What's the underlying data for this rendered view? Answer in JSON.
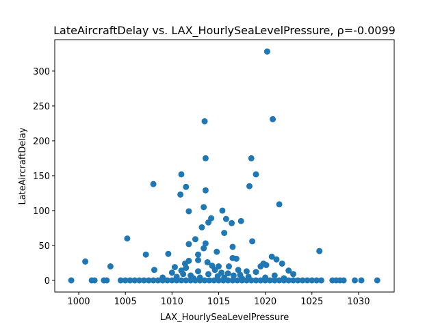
{
  "chart_data": {
    "type": "scatter",
    "title": "LateAircraftDelay vs. LAX_HourlySeaLevelPressure, ρ=-0.0099",
    "x_label": "LAX_HourlySeaLevelPressure",
    "y_label": "LateAircraftDelay",
    "color": "#1f77b4",
    "x": [
      1020.2,
      1013.5,
      1020.8,
      1013.6,
      1018.5,
      1011.0,
      1019.0,
      1008.0,
      1011.5,
      1018.3,
      1013.6,
      1010.9,
      1021.5,
      1013.4,
      1015.4,
      1011.8,
      1015.8,
      1014.2,
      1017.4,
      1013.9,
      1016.4,
      1013.2,
      1015.6,
      1005.2,
      1012.5,
      1018.6,
      1013.6,
      1011.8,
      1016.5,
      1013.4,
      1025.8,
      1014.8,
      1009.6,
      1007.2,
      1012.8,
      1020.7,
      1016.5,
      1021.2,
      1012.8,
      1016.9,
      1011.8,
      1000.7,
      1013.8,
      1011.4,
      1019.8,
      1021.8,
      1020.1,
      1014.3,
      1003.4,
      1015.0,
      1010.3,
      1016.1,
      1019.5,
      1011.5,
      1008.1,
      1014.6,
      1017.1,
      1022.5,
      1011.0,
      1012.8,
      1018.0,
      1010.0,
      1015.3,
      1016.0,
      1019.0,
      1023.0,
      1011.2,
      1013.9,
      1017.3,
      1012.0,
      1014.9,
      1016.6,
      1021.0,
      1010.5,
      1018.2,
      1009.0,
      1013.0,
      1015.6,
      1020.0,
      1022.0,
      1012.3,
      1017.5,
      999.2,
      1001.4,
      1001.7,
      1002.7,
      1003.0,
      1004.5,
      1005.0,
      1005.5,
      1006.0,
      1006.5,
      1007.0,
      1007.5,
      1008.0,
      1008.5,
      1009.0,
      1009.5,
      1010.0,
      1010.5,
      1011.0,
      1011.5,
      1012.0,
      1012.5,
      1013.0,
      1013.5,
      1014.0,
      1014.5,
      1015.0,
      1015.5,
      1016.0,
      1016.5,
      1017.0,
      1017.5,
      1018.0,
      1018.5,
      1019.0,
      1019.5,
      1020.0,
      1020.5,
      1021.0,
      1021.5,
      1022.0,
      1022.5,
      1023.0,
      1023.5,
      1024.0,
      1024.5,
      1025.0,
      1025.5,
      1026.0,
      1027.2,
      1027.6,
      1028.0,
      1028.4,
      1029.6,
      1030.3,
      1032.0
    ],
    "values": [
      328,
      228,
      231,
      175,
      175,
      152,
      152,
      138,
      134,
      135,
      129,
      123,
      109,
      105,
      100,
      99,
      88,
      89,
      85,
      83,
      82,
      76,
      68,
      60,
      59,
      56,
      53,
      52,
      48,
      46,
      42,
      41,
      38,
      37,
      37,
      34,
      32,
      30,
      29,
      31,
      28,
      27,
      26,
      24,
      24,
      24,
      22,
      21,
      20,
      20,
      19,
      20,
      20,
      18,
      15,
      15,
      15,
      14,
      14,
      13,
      13,
      11,
      11,
      10,
      12,
      9,
      9,
      9,
      8,
      7,
      6,
      7,
      7,
      5,
      5,
      4,
      4,
      4,
      4,
      3,
      3,
      3,
      0,
      0,
      0,
      0,
      0,
      0,
      0,
      0,
      0,
      0,
      0,
      0,
      0,
      0,
      0,
      0,
      0,
      0,
      0,
      0,
      0,
      0,
      0,
      0,
      0,
      0,
      0,
      0,
      0,
      0,
      0,
      0,
      0,
      0,
      0,
      0,
      0,
      0,
      0,
      0,
      0,
      0,
      0,
      0,
      0,
      0,
      0,
      0,
      0,
      0,
      0,
      0,
      0,
      0,
      0,
      0
    ],
    "xlim": [
      997.43,
      1033.82
    ],
    "ylim": [
      -16.7,
      345
    ],
    "xticks": [
      1000,
      1005,
      1010,
      1015,
      1020,
      1025,
      1030
    ],
    "yticks": [
      0,
      50,
      100,
      150,
      200,
      250,
      300
    ]
  }
}
